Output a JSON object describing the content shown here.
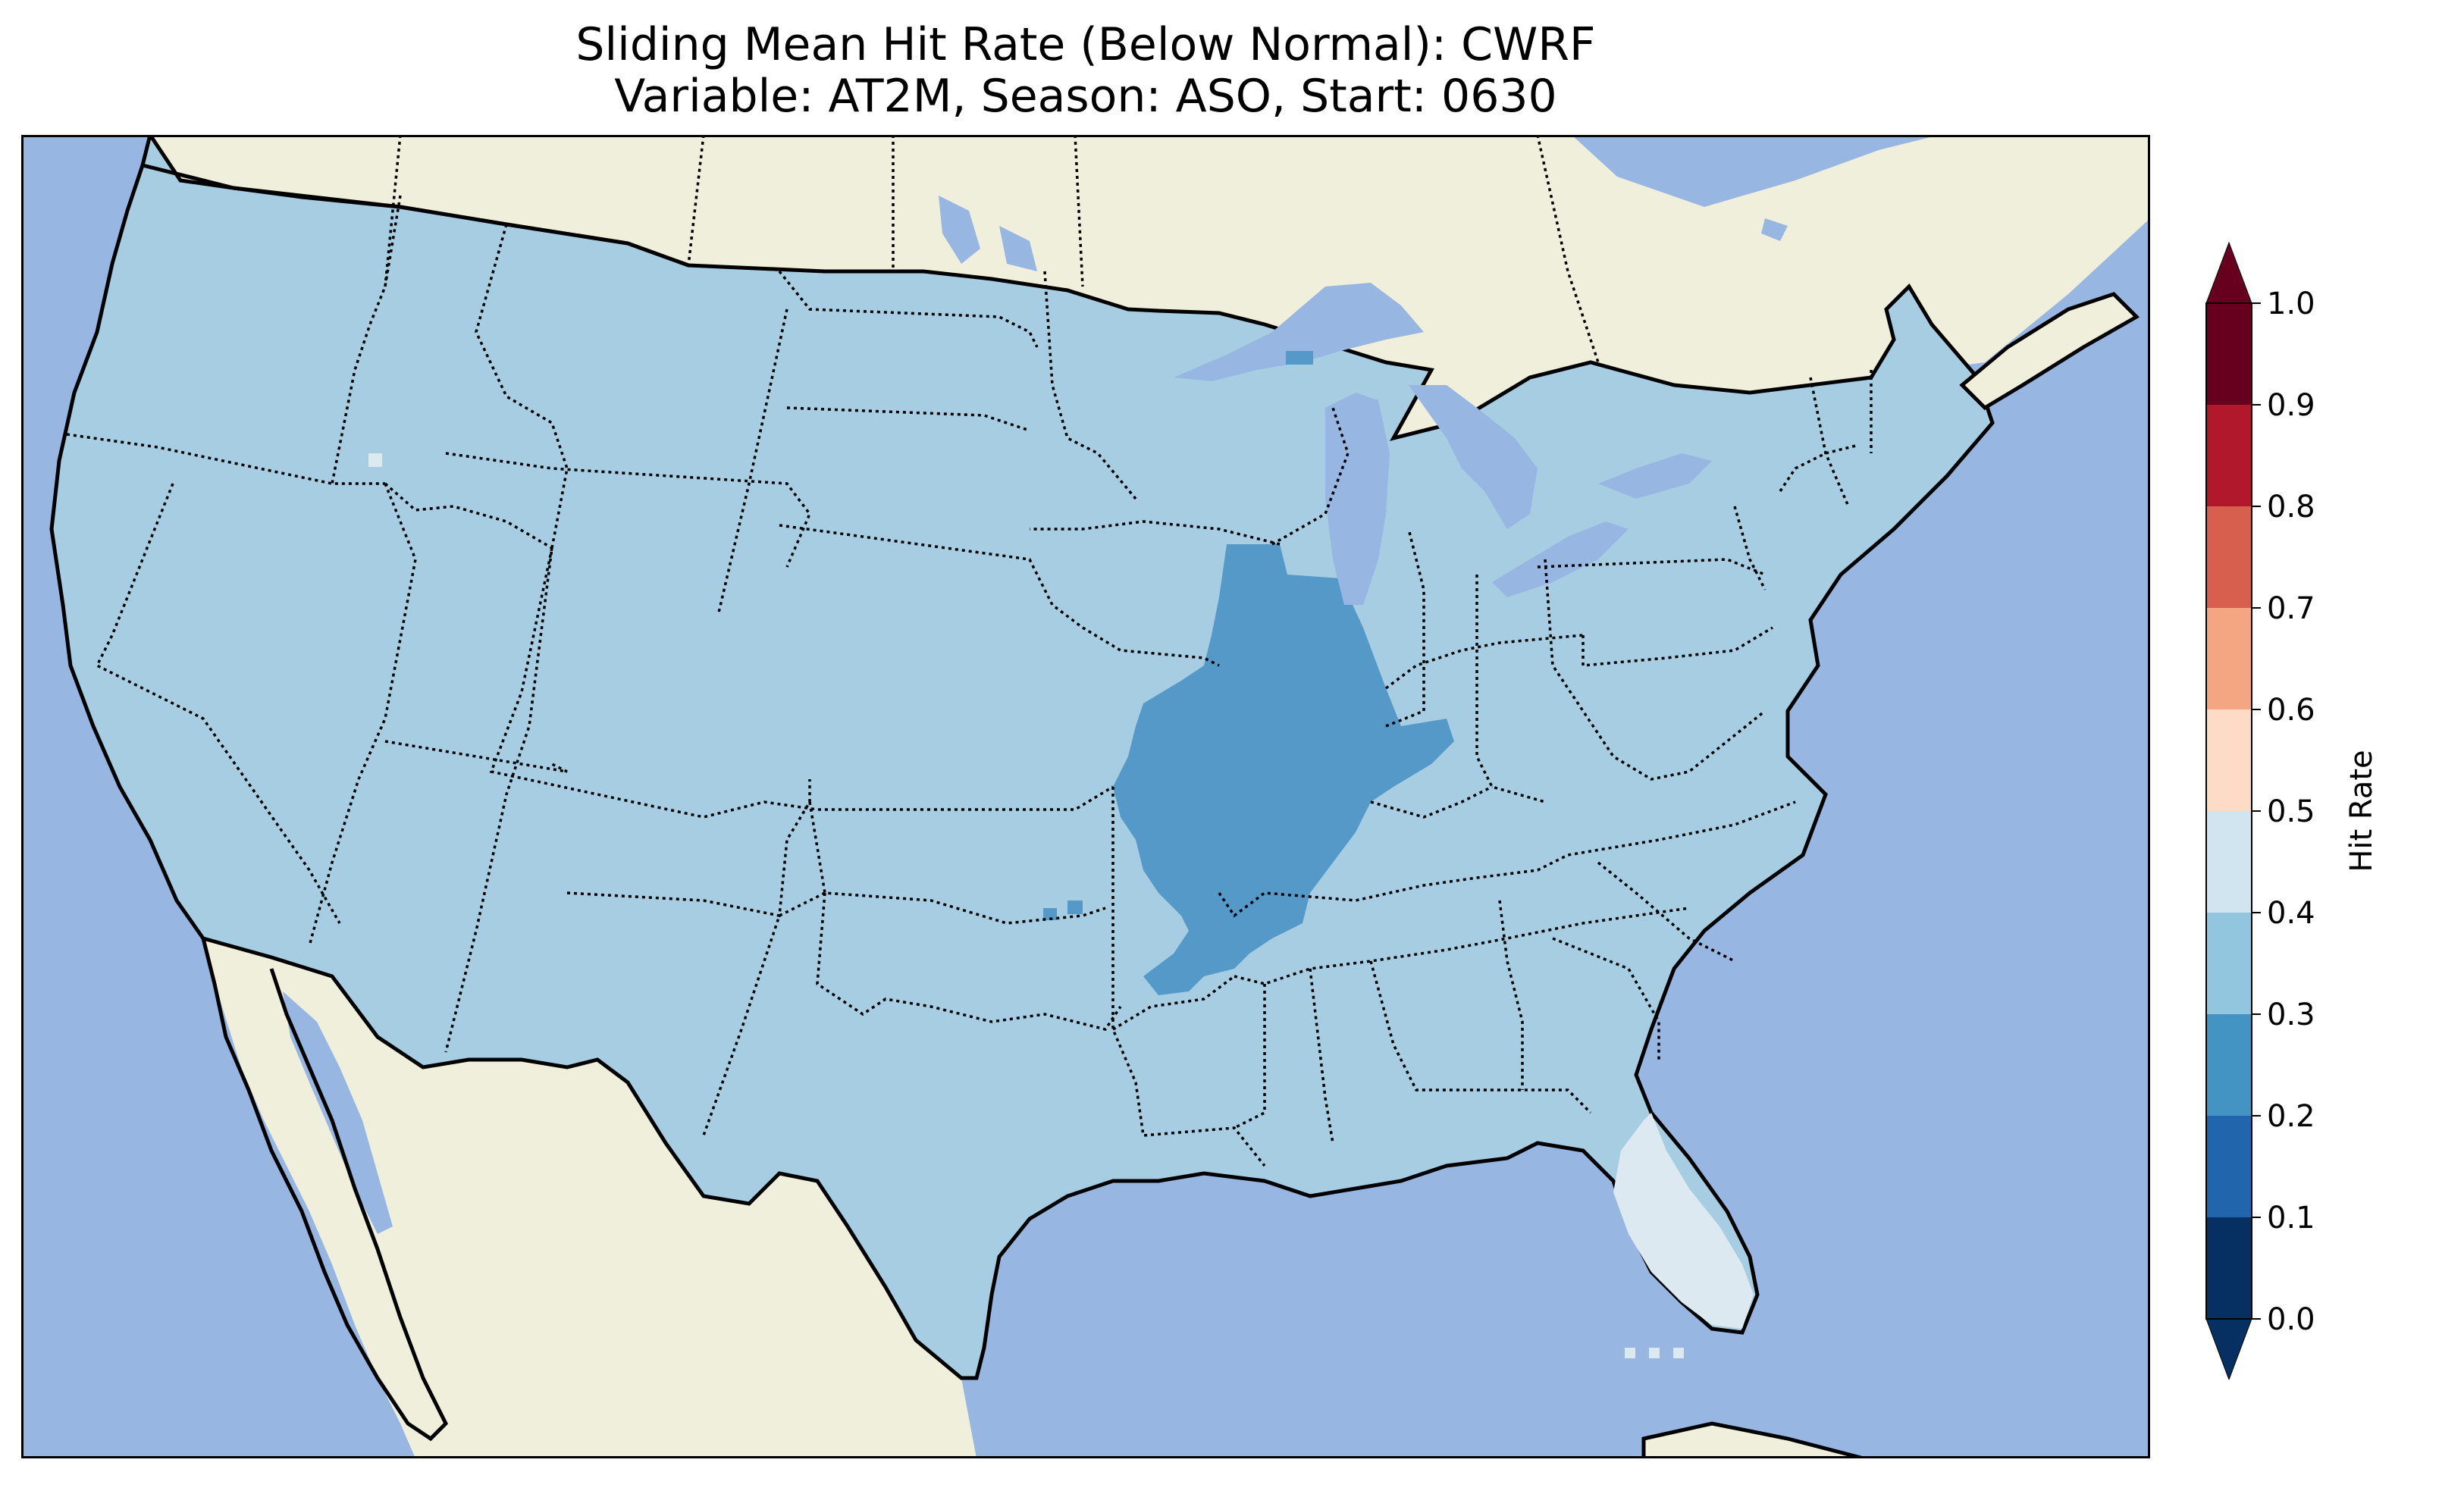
{
  "title": {
    "line1": "Sliding Mean Hit Rate (Below Normal): CWRF",
    "line2": "Variable: AT2M, Season: ASO, Start: 0630"
  },
  "colors": {
    "ocean": "#97b6e1",
    "land": "#efefdb",
    "lake": "#97b6e1"
  },
  "colorbar": {
    "label": "Hit Rate",
    "ticks": [
      "0.0",
      "0.1",
      "0.2",
      "0.3",
      "0.4",
      "0.5",
      "0.6",
      "0.7",
      "0.8",
      "0.9",
      "1.0"
    ],
    "bins": [
      {
        "range": [
          0.0,
          0.1
        ],
        "color": "#053061"
      },
      {
        "range": [
          0.1,
          0.2
        ],
        "color": "#2166ac"
      },
      {
        "range": [
          0.2,
          0.3
        ],
        "color": "#4393c3"
      },
      {
        "range": [
          0.3,
          0.4
        ],
        "color": "#92c5de"
      },
      {
        "range": [
          0.4,
          0.5
        ],
        "color": "#d1e5f0"
      },
      {
        "range": [
          0.5,
          0.6
        ],
        "color": "#fddbc7"
      },
      {
        "range": [
          0.6,
          0.7
        ],
        "color": "#f4a582"
      },
      {
        "range": [
          0.7,
          0.8
        ],
        "color": "#d6604d"
      },
      {
        "range": [
          0.8,
          0.9
        ],
        "color": "#b2182b"
      },
      {
        "range": [
          0.9,
          1.0
        ],
        "color": "#67001f"
      }
    ],
    "extend_min_color": "#053061",
    "extend_max_color": "#67001f"
  },
  "map_regions": [
    {
      "name": "CONUS (most of domain)",
      "hit_rate_bin": [
        0.3,
        0.4
      ]
    },
    {
      "name": "Mid-Mississippi valley (IL, MO, AR)",
      "hit_rate_bin": [
        0.2,
        0.3
      ]
    },
    {
      "name": "Florida peninsula",
      "hit_rate_bin": [
        0.4,
        0.5
      ]
    }
  ]
}
